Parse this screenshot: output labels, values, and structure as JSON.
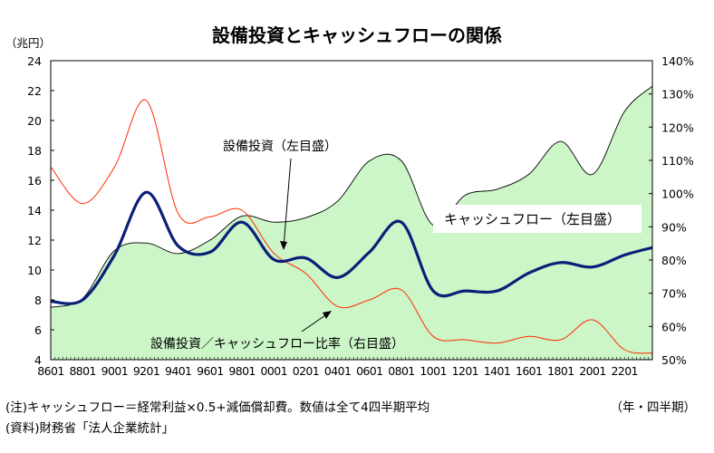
{
  "chart_data": {
    "type": "area",
    "title": "設備投資とキャッシュフローの関係",
    "ylabel_left": "（兆円）",
    "xlabel": "（年・四半期）",
    "ylim_left": [
      4,
      24
    ],
    "ylim_right": [
      50,
      140
    ],
    "yticks_left": [
      "4",
      "6",
      "8",
      "10",
      "12",
      "14",
      "16",
      "18",
      "20",
      "22",
      "24"
    ],
    "yticks_right": [
      "50%",
      "60%",
      "70%",
      "80%",
      "90%",
      "100%",
      "110%",
      "120%",
      "130%",
      "140%"
    ],
    "x_start": "8601",
    "x_end": "2304",
    "xtick_labels": [
      "8601",
      "8801",
      "9001",
      "9201",
      "9401",
      "9601",
      "9801",
      "0001",
      "0201",
      "0401",
      "0601",
      "0801",
      "1001",
      "1201",
      "1401",
      "1601",
      "1801",
      "2001",
      "2201"
    ],
    "annotations": {
      "capex": "設備投資（左目盛）",
      "cashflow": "キャッシュフロー（左目盛）",
      "ratio": "設備投資／キャッシュフロー比率（右目盛）"
    },
    "colors": {
      "cashflow_fill": "#ccf5c8",
      "cashflow_line": "#000000",
      "capex_line": "#0a1f78",
      "ratio_line": "#ff2a00"
    },
    "series": [
      {
        "name": "キャッシュフロー（左目盛）",
        "axis": "left",
        "x": [
          "8601",
          "8801",
          "9001",
          "9201",
          "9401",
          "9601",
          "9801",
          "0001",
          "0201",
          "0401",
          "0601",
          "0801",
          "1001",
          "1201",
          "1401",
          "1601",
          "1801",
          "2001",
          "2201",
          "2304"
        ],
        "values": [
          7.5,
          8.1,
          11.3,
          11.8,
          11.1,
          12.0,
          13.6,
          13.2,
          13.5,
          14.6,
          17.3,
          17.3,
          13.0,
          15.0,
          15.4,
          16.4,
          18.6,
          16.4,
          20.6,
          22.3
        ]
      },
      {
        "name": "設備投資（左目盛）",
        "axis": "left",
        "x": [
          "8601",
          "8801",
          "9001",
          "9201",
          "9401",
          "9601",
          "9801",
          "0001",
          "0201",
          "0401",
          "0601",
          "0801",
          "1001",
          "1201",
          "1401",
          "1601",
          "1801",
          "2001",
          "2201",
          "2304"
        ],
        "values": [
          7.9,
          8.0,
          11.0,
          15.2,
          11.6,
          11.2,
          13.2,
          10.7,
          10.8,
          9.5,
          11.2,
          13.2,
          8.6,
          8.6,
          8.6,
          9.8,
          10.5,
          10.2,
          11.0,
          11.5
        ]
      },
      {
        "name": "設備投資／キャッシュフロー比率（右目盛）",
        "axis": "right",
        "x": [
          "8601",
          "8801",
          "9001",
          "9201",
          "9401",
          "9601",
          "9801",
          "0001",
          "0201",
          "0401",
          "0601",
          "0801",
          "1001",
          "1201",
          "1401",
          "1601",
          "1801",
          "2001",
          "2201",
          "2304"
        ],
        "values": [
          108,
          97,
          108,
          128,
          94,
          93,
          95,
          82,
          76,
          66,
          68,
          71,
          57,
          56,
          55,
          57,
          56,
          62,
          53,
          52
        ]
      }
    ]
  },
  "notes": {
    "note1": "(注)キャッシュフロー＝経常利益×0.5+減価償却費。数値は全て4四半期平均",
    "note2": "(資料)財務省「法人企業統計」",
    "period_label": "（年・四半期）"
  }
}
